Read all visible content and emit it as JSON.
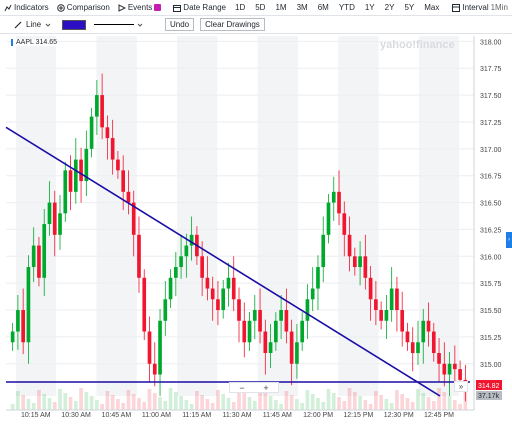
{
  "toolbar": {
    "indicators": "Indicators",
    "comparison": "Comparison",
    "events": "Events",
    "date_range": "Date Range",
    "ranges": [
      "1D",
      "5D",
      "1M",
      "3M",
      "6M",
      "YTD",
      "1Y",
      "2Y",
      "5Y",
      "Max"
    ],
    "interval_label": "Interval",
    "interval_value": "1Min",
    "chart_type": "Candle"
  },
  "drawbar": {
    "draw_type": "Line",
    "color": "#2c0fc2",
    "undo": "Undo",
    "clear": "Clear Drawings"
  },
  "quote": {
    "symbol": "AAPL",
    "value": "314.65"
  },
  "watermark": "yahoo!finance",
  "price_tag": {
    "last": "314.82",
    "volume": "37.17k"
  },
  "controls": {
    "zoom_out": "−",
    "zoom_in": "+",
    "jump": "»"
  },
  "chart_data": {
    "type": "candlestick",
    "y_ticks": [
      "318.00",
      "317.75",
      "317.50",
      "317.25",
      "317.00",
      "316.75",
      "316.50",
      "316.25",
      "316.00",
      "315.75",
      "315.50",
      "315.25",
      "315.00"
    ],
    "ylim": [
      314.7,
      318.05
    ],
    "x_ticks": [
      "10:15 AM",
      "10:30 AM",
      "10:45 AM",
      "11:00 AM",
      "11:15 AM",
      "11:30 AM",
      "11:45 AM",
      "12:00 PM",
      "12:15 PM",
      "12:30 PM",
      "12:45 PM"
    ],
    "closes": [
      315.3,
      315.5,
      315.2,
      315.9,
      316.1,
      315.8,
      316.3,
      316.5,
      316.2,
      316.4,
      316.8,
      316.6,
      316.9,
      316.7,
      317.0,
      317.3,
      317.5,
      317.2,
      317.1,
      316.9,
      316.8,
      316.6,
      316.5,
      316.2,
      315.8,
      315.3,
      315.0,
      314.9,
      315.4,
      315.6,
      315.8,
      315.9,
      316.0,
      316.1,
      316.2,
      316.0,
      315.8,
      315.7,
      315.6,
      315.5,
      315.7,
      315.8,
      315.6,
      315.4,
      315.2,
      315.4,
      315.5,
      315.3,
      315.1,
      315.2,
      315.4,
      315.5,
      315.3,
      315.0,
      315.2,
      315.4,
      315.6,
      315.7,
      315.9,
      316.2,
      316.5,
      316.6,
      316.4,
      316.2,
      316.0,
      315.9,
      316.0,
      315.8,
      315.6,
      315.5,
      315.4,
      315.5,
      315.7,
      315.5,
      315.3,
      315.2,
      315.1,
      315.2,
      315.4,
      315.3,
      315.1,
      315.0,
      314.9,
      315.0,
      314.95,
      314.85,
      314.82
    ],
    "trendlines": [
      {
        "from": [
          "09:59 AM",
          317.2
        ],
        "to": [
          "12:52 PM",
          314.75
        ]
      },
      {
        "from": [
          "09:59 AM",
          314.9
        ],
        "to": [
          "12:52 PM",
          314.9
        ]
      }
    ]
  }
}
